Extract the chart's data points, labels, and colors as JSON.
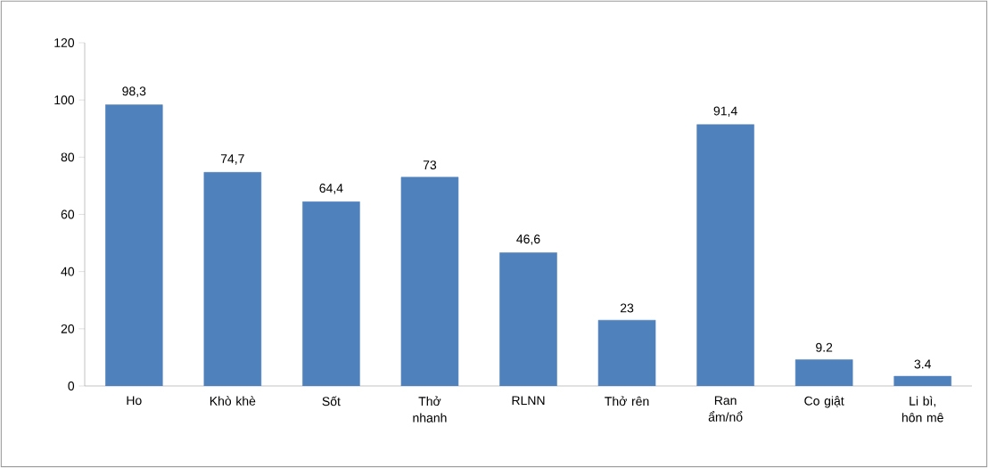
{
  "chart_data": {
    "type": "bar",
    "categories": [
      "Ho",
      "Khò khè",
      "Sốt",
      "Thở nhanh",
      "RLNN",
      "Thở rên",
      "Ran ẩm/nổ",
      "Co giật",
      "Li bì, hôn mê"
    ],
    "values": [
      98.3,
      74.7,
      64.4,
      73,
      46.6,
      23,
      91.4,
      9.2,
      3.4
    ],
    "value_labels": [
      "98,3",
      "74,7",
      "64,4",
      "73",
      "46,6",
      "23",
      "91,4",
      "9.2",
      "3.4"
    ],
    "color": "#4f81bd",
    "ylim": [
      0,
      120
    ],
    "yticks": [
      0,
      20,
      40,
      60,
      80,
      100,
      120
    ],
    "grid": false
  }
}
